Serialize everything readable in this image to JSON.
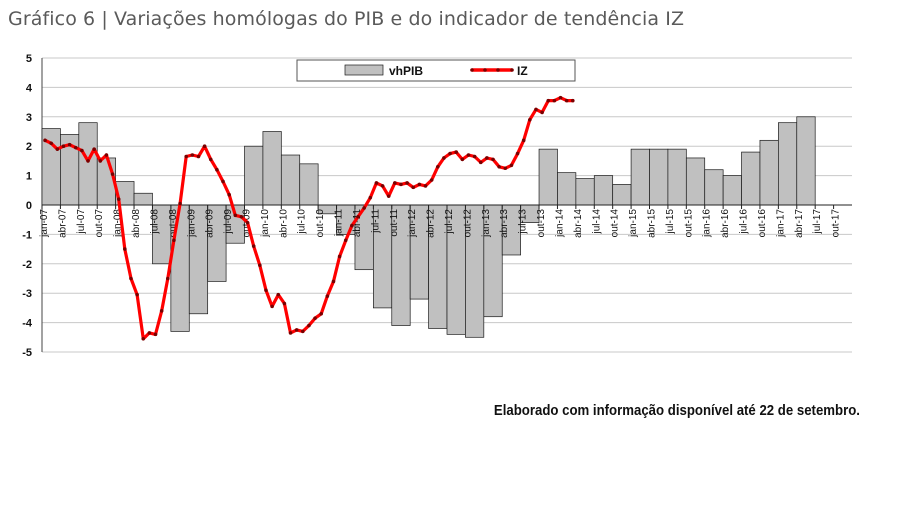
{
  "title": "Gráfico 6 | Variações homólogas do PIB e do indicador de tendência IZ",
  "note": "Elaborado com informação disponível até 22 de setembro.",
  "colors": {
    "bar_fill": "#c0c0c0",
    "bar_stroke": "#1a1a1a",
    "line": "#ff0000",
    "marker": "#7a0000",
    "grid": "#c8c8c8"
  },
  "chart_data": {
    "type": "bar",
    "ylim": [
      -5,
      5
    ],
    "yticks": [
      "5",
      "4",
      "3",
      "2",
      "1",
      "0",
      "-1",
      "-2",
      "-3",
      "-4",
      "-5"
    ],
    "grid": true,
    "legend": {
      "placement": "top-center",
      "entries": [
        "vhPIB",
        "IZ"
      ]
    },
    "x_tick_labels": [
      "jan-07",
      "abr-07",
      "jul-07",
      "out-07",
      "jan-08",
      "abr-08",
      "jul-08",
      "out-08",
      "jan-09",
      "abr-09",
      "jul-09",
      "out-09",
      "jan-10",
      "abr-10",
      "jul-10",
      "out-10",
      "jan-11",
      "abr-11",
      "jul-11",
      "out-11",
      "jan-12",
      "abr-12",
      "jul-12",
      "out-12",
      "jan-13",
      "abr-13",
      "jul-13",
      "out-13",
      "jan-14",
      "abr-14",
      "jul-14",
      "out-14",
      "jan-15",
      "abr-15",
      "jul-15",
      "out-15",
      "jan-16",
      "abr-16",
      "jul-16",
      "out-16",
      "jan-17",
      "abr-17",
      "jul-17",
      "out-17"
    ],
    "series": [
      {
        "name": "vhPIB",
        "type": "bar",
        "values": [
          2.6,
          2.4,
          2.8,
          1.6,
          0.8,
          0.4,
          -2.0,
          -4.3,
          -3.7,
          -2.6,
          -1.3,
          2.0,
          2.5,
          1.7,
          1.4,
          -0.3,
          -1.0,
          -2.2,
          -3.5,
          -4.1,
          -3.2,
          -4.2,
          -4.4,
          -4.5,
          -3.8,
          -1.7,
          -0.6,
          1.9,
          1.1,
          0.9,
          1.0,
          0.7,
          1.9,
          1.9,
          1.9,
          1.6,
          1.2,
          1.0,
          1.8,
          2.2,
          2.8,
          3.0,
          null,
          null
        ]
      },
      {
        "name": "IZ",
        "type": "line",
        "values": [
          2.2,
          2.1,
          1.9,
          2.0,
          2.05,
          1.95,
          1.85,
          1.5,
          1.9,
          1.5,
          1.7,
          1.05,
          0.2,
          -1.5,
          -2.5,
          -3.05,
          -4.55,
          -4.35,
          -4.4,
          -3.6,
          -2.5,
          -1.2,
          0.05,
          1.65,
          1.7,
          1.65,
          2.0,
          1.55,
          1.2,
          0.8,
          0.35,
          -0.35,
          -0.4,
          -0.6,
          -1.4,
          -2.05,
          -2.9,
          -3.45,
          -3.05,
          -3.35,
          -4.35,
          -4.25,
          -4.3,
          -4.1,
          -3.85,
          -3.7,
          -3.1,
          -2.6,
          -1.75,
          -1.2,
          -0.7,
          -0.4,
          -0.1,
          0.25,
          0.75,
          0.65,
          0.3,
          0.75,
          0.7,
          0.75,
          0.6,
          0.7,
          0.65,
          0.85,
          1.3,
          1.6,
          1.75,
          1.8,
          1.55,
          1.7,
          1.65,
          1.45,
          1.6,
          1.55,
          1.3,
          1.25,
          1.35,
          1.75,
          2.2,
          2.9,
          3.25,
          3.15,
          3.55,
          3.55,
          3.65,
          3.55,
          3.55
        ]
      }
    ]
  }
}
